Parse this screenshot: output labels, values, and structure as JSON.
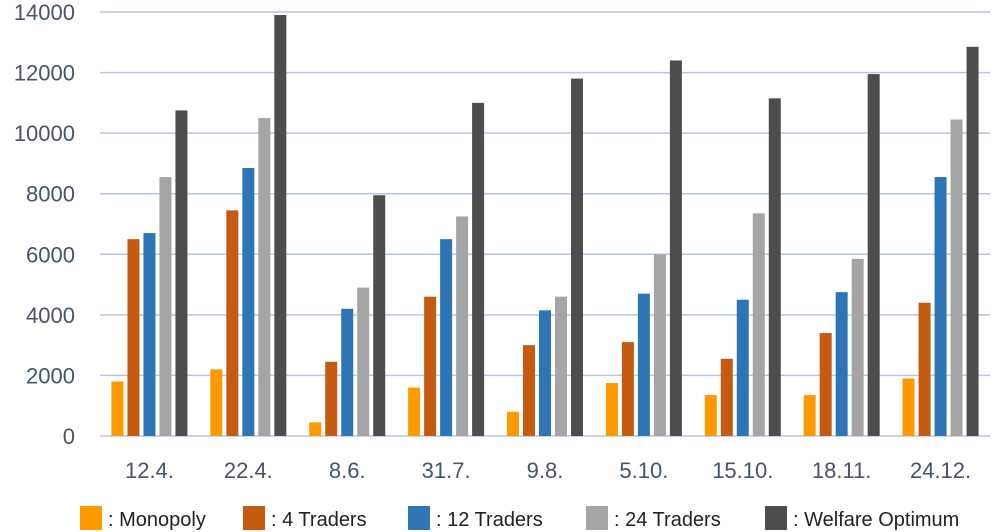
{
  "chart_data": {
    "type": "bar",
    "title": "",
    "xlabel": "",
    "ylabel": "",
    "ylim": [
      0,
      14000
    ],
    "yticks": [
      0,
      2000,
      4000,
      6000,
      8000,
      10000,
      12000,
      14000
    ],
    "grid": true,
    "legend_position": "bottom",
    "categories": [
      "12.4.",
      "22.4.",
      "8.6.",
      "31.7.",
      "9.8.",
      "5.10.",
      "15.10.",
      "18.11.",
      "24.12."
    ],
    "series": [
      {
        "name": ": Monopoly",
        "color": "#ff9900",
        "values": [
          1800,
          2200,
          450,
          1600,
          800,
          1750,
          1350,
          1350,
          1900
        ]
      },
      {
        "name": ": 4 Traders",
        "color": "#c55a11",
        "values": [
          6500,
          7450,
          2450,
          4600,
          3000,
          3100,
          2550,
          3400,
          4400
        ]
      },
      {
        "name": ": 12 Traders",
        "color": "#2e75b6",
        "values": [
          6700,
          8850,
          4200,
          6500,
          4150,
          4700,
          4500,
          4750,
          8550
        ]
      },
      {
        "name": ": 24 Traders",
        "color": "#a5a5a5",
        "values": [
          8550,
          10500,
          4900,
          7250,
          4600,
          6000,
          7350,
          5850,
          10450
        ]
      },
      {
        "name": ": Welfare Optimum",
        "color": "#4d4d4d",
        "values": [
          10750,
          13900,
          7950,
          11000,
          11800,
          12400,
          11150,
          11950,
          12850
        ]
      }
    ]
  }
}
